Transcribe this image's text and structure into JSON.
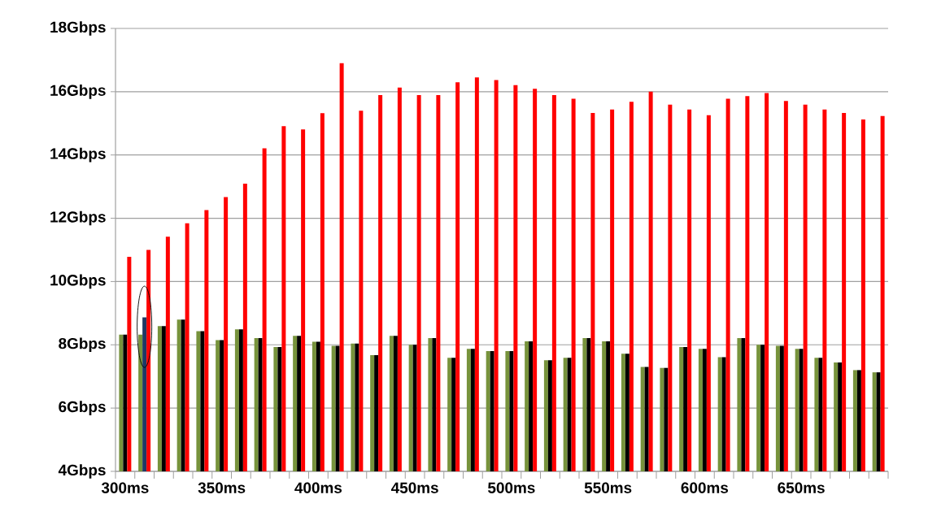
{
  "chart_data": {
    "type": "bar",
    "categories": [
      "300ms",
      null,
      null,
      null,
      null,
      "350ms",
      null,
      null,
      null,
      null,
      "400ms",
      null,
      null,
      null,
      null,
      "450ms",
      null,
      null,
      null,
      null,
      "500ms",
      null,
      null,
      null,
      null,
      "550ms",
      null,
      null,
      null,
      null,
      "600ms",
      null,
      null,
      null,
      null,
      "650ms",
      null,
      null,
      null,
      null
    ],
    "series": [
      {
        "color": "#77933c",
        "values": [
          8.32,
          8.32,
          8.59,
          8.8,
          8.43,
          8.15,
          8.49,
          8.21,
          7.93,
          8.28,
          8.1,
          7.97,
          8.04,
          7.67,
          8.28,
          8.0,
          8.21,
          7.59,
          7.87,
          7.8,
          7.8,
          8.11,
          7.51,
          7.59,
          8.21,
          8.11,
          7.72,
          7.3,
          7.27,
          7.93,
          7.87,
          7.61,
          8.21,
          8.0,
          7.97,
          7.87,
          7.59,
          7.44,
          7.2,
          7.13
        ]
      },
      {
        "color": "#000000",
        "colors": [
          "#000000",
          "#1f3864",
          "#000000",
          "#000000",
          "#000000",
          "#000000",
          "#000000",
          "#000000",
          "#000000",
          "#000000",
          "#000000",
          "#000000",
          "#000000",
          "#000000",
          "#000000",
          "#000000",
          "#000000",
          "#000000",
          "#000000",
          "#000000",
          "#000000",
          "#000000",
          "#000000",
          "#000000",
          "#000000",
          "#000000",
          "#000000",
          "#000000",
          "#000000",
          "#000000",
          "#000000",
          "#000000",
          "#000000",
          "#000000",
          "#000000",
          "#000000",
          "#000000",
          "#000000",
          "#000000",
          "#000000"
        ],
        "values": [
          8.32,
          8.87,
          8.59,
          8.8,
          8.43,
          8.15,
          8.49,
          8.21,
          7.93,
          8.28,
          8.1,
          7.97,
          8.04,
          7.67,
          8.28,
          8.0,
          8.21,
          7.59,
          7.87,
          7.8,
          7.8,
          8.11,
          7.51,
          7.59,
          8.21,
          8.11,
          7.72,
          7.3,
          7.27,
          7.93,
          7.87,
          7.61,
          8.21,
          8.0,
          7.97,
          7.87,
          7.59,
          7.44,
          7.2,
          7.13
        ]
      },
      {
        "color": "#ff0000",
        "values": [
          10.78,
          11.0,
          11.42,
          11.84,
          12.26,
          12.67,
          13.09,
          14.21,
          14.91,
          14.81,
          15.32,
          16.9,
          15.4,
          15.89,
          16.13,
          15.89,
          15.89,
          16.3,
          16.45,
          16.37,
          16.21,
          16.09,
          15.89,
          15.78,
          15.33,
          15.44,
          15.68,
          16.0,
          15.59,
          15.44,
          15.26,
          15.78,
          15.86,
          15.96,
          15.71,
          15.59,
          15.44,
          15.33,
          15.12,
          15.23
        ]
      }
    ],
    "ylim": [
      4,
      18
    ],
    "yticks": [
      {
        "value": 4,
        "label": "4Gbps"
      },
      {
        "value": 6,
        "label": "6Gbps"
      },
      {
        "value": 8,
        "label": "8Gbps"
      },
      {
        "value": 10,
        "label": "10Gbps"
      },
      {
        "value": 12,
        "label": "12Gbps"
      },
      {
        "value": 14,
        "label": "14Gbps"
      },
      {
        "value": 16,
        "label": "16Gbps"
      },
      {
        "value": 18,
        "label": "18Gbps"
      }
    ],
    "grid": "y"
  }
}
